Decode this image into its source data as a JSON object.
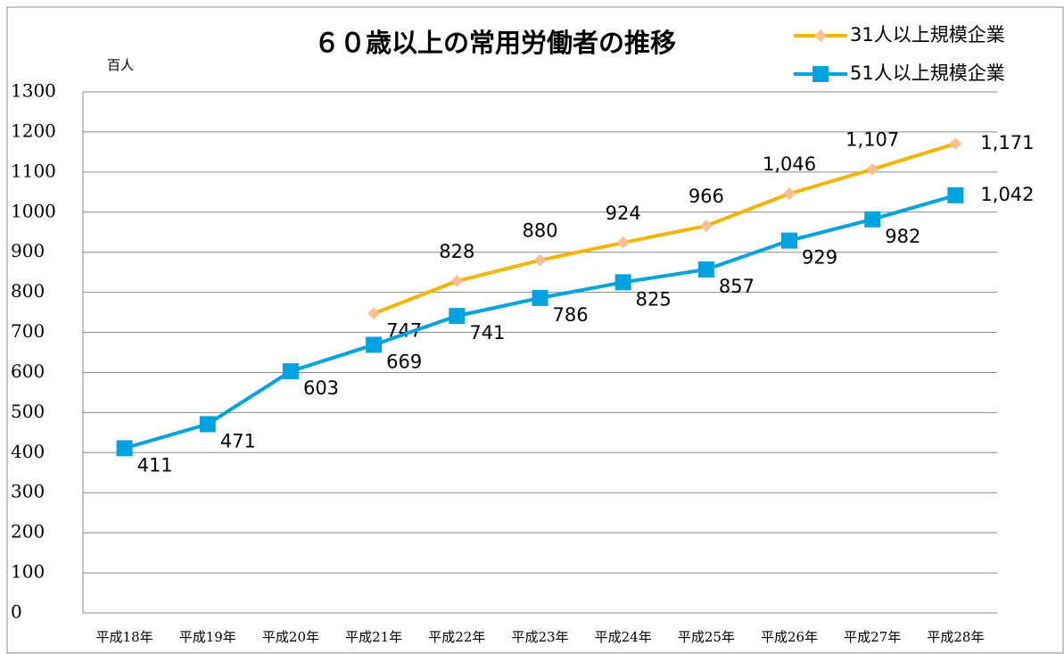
{
  "chart_data": {
    "type": "line",
    "title": "６０歳以上の常用労働者の推移",
    "y_label": "百人",
    "categories": [
      "平成18年",
      "平成19年",
      "平成20年",
      "平成21年",
      "平成22年",
      "平成23年",
      "平成24年",
      "平成25年",
      "平成26年",
      "平成27年",
      "平成28年"
    ],
    "series": [
      {
        "name": "31人以上規模企業",
        "color": "#f5b400",
        "marker_color": "#fac090",
        "marker": "diamond",
        "values": [
          null,
          null,
          null,
          747,
          828,
          880,
          924,
          966,
          1046,
          1107,
          1171
        ],
        "value_labels": [
          null,
          null,
          null,
          "747",
          "828",
          "880",
          "924",
          "966",
          "1,046",
          "1,107",
          "1,171"
        ]
      },
      {
        "name": "51人以上規模企業",
        "color": "#00a2e0",
        "marker_color": "#00a2e0",
        "marker": "square",
        "values": [
          411,
          471,
          603,
          669,
          741,
          786,
          825,
          857,
          929,
          982,
          1042
        ],
        "value_labels": [
          "411",
          "471",
          "603",
          "669",
          "741",
          "786",
          "825",
          "857",
          "929",
          "982",
          "1,042"
        ]
      }
    ],
    "ylim": [
      0,
      1300
    ],
    "yticks": [
      0,
      100,
      200,
      300,
      400,
      500,
      600,
      700,
      800,
      900,
      1000,
      1100,
      1200,
      1300
    ],
    "grid": true,
    "legend": "top-right"
  }
}
